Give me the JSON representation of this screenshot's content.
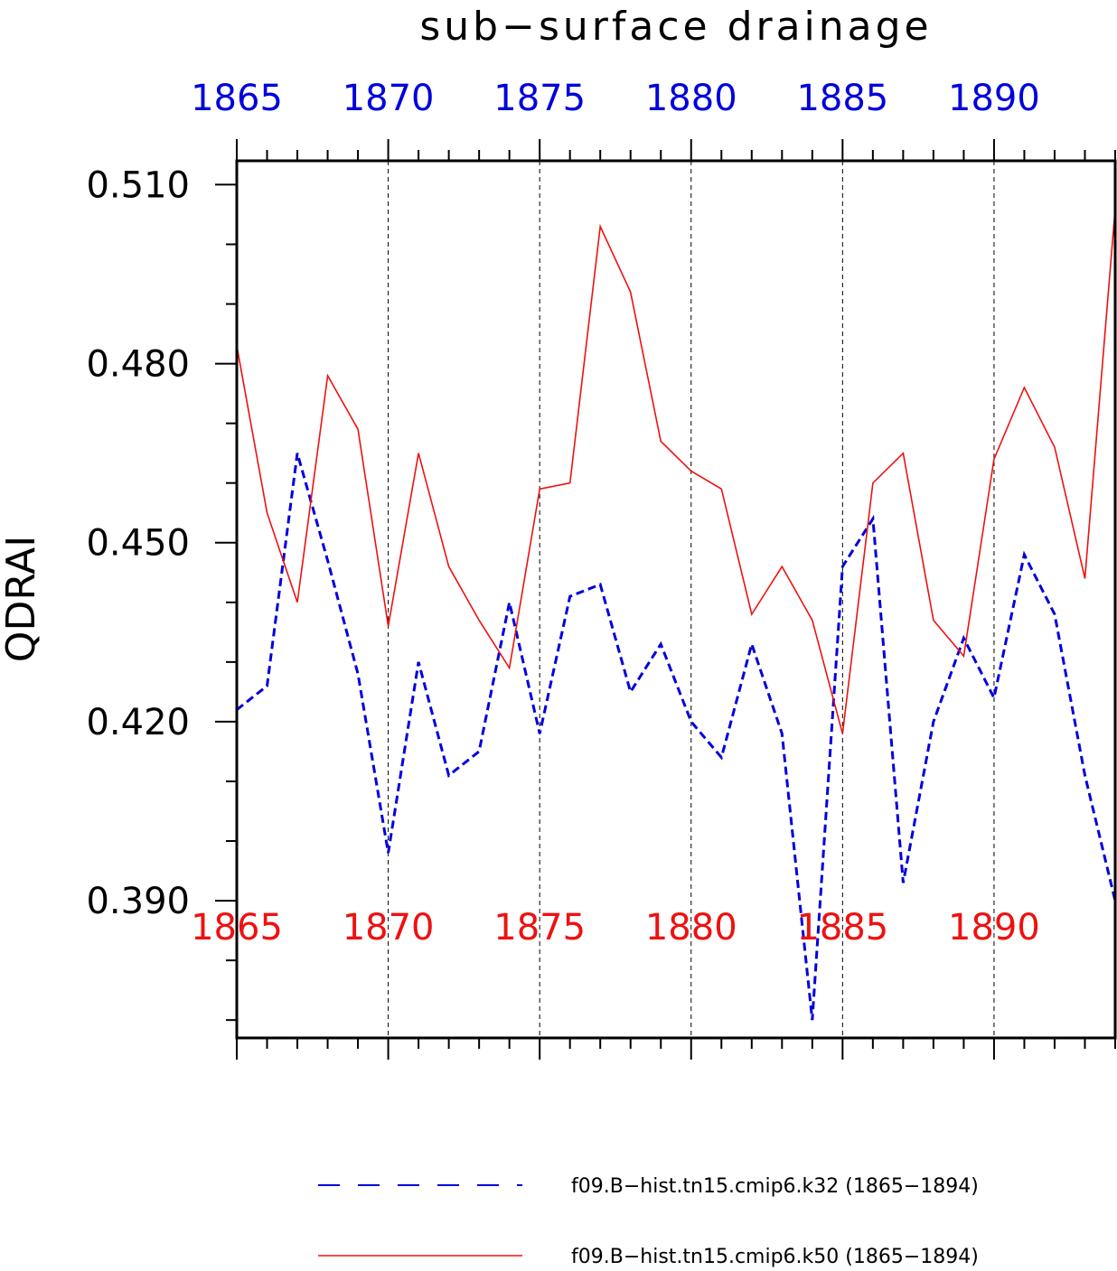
{
  "chart_data": {
    "type": "line",
    "title": "sub−surface drainage",
    "ylabel": "QDRAI",
    "xlabel": "",
    "xlim": [
      1865,
      1894
    ],
    "ylim": [
      0.367,
      0.514
    ],
    "yticks": [
      0.39,
      0.42,
      0.45,
      0.48,
      0.51
    ],
    "ytick_labels": [
      "0.390",
      "0.420",
      "0.450",
      "0.480",
      "0.510"
    ],
    "xticks": [
      1865,
      1870,
      1875,
      1880,
      1885,
      1890
    ],
    "xtick_labels_bottom": [
      "1865",
      "1870",
      "1875",
      "1880",
      "1885",
      "1890"
    ],
    "xtick_labels_top": [
      "1865",
      "1870",
      "1875",
      "1880",
      "1885",
      "1890"
    ],
    "grid": "vertical dashed at major x ticks",
    "legend_position": "bottom",
    "x": [
      1865,
      1866,
      1867,
      1868,
      1869,
      1870,
      1871,
      1872,
      1873,
      1874,
      1875,
      1876,
      1877,
      1878,
      1879,
      1880,
      1881,
      1882,
      1883,
      1884,
      1885,
      1886,
      1887,
      1888,
      1889,
      1890,
      1891,
      1892,
      1893,
      1894
    ],
    "series": [
      {
        "name": "f09.B−hist.tn15.cmip6.k32 (1865−1894)",
        "color": "#0000dd",
        "style": "dashed",
        "values": [
          0.422,
          0.426,
          0.465,
          0.447,
          0.428,
          0.398,
          0.43,
          0.411,
          0.415,
          0.44,
          0.418,
          0.441,
          0.443,
          0.425,
          0.433,
          0.42,
          0.414,
          0.433,
          0.418,
          0.37,
          0.446,
          0.454,
          0.393,
          0.42,
          0.434,
          0.424,
          0.448,
          0.438,
          0.411,
          0.39
        ]
      },
      {
        "name": "f09.B−hist.tn15.cmip6.k50 (1865−1894)",
        "color": "#ee1111",
        "style": "solid",
        "values": [
          0.483,
          0.455,
          0.44,
          0.478,
          0.469,
          0.436,
          0.465,
          0.446,
          0.437,
          0.429,
          0.459,
          0.46,
          0.503,
          0.492,
          0.467,
          0.462,
          0.459,
          0.438,
          0.446,
          0.437,
          0.418,
          0.46,
          0.465,
          0.437,
          0.431,
          0.464,
          0.476,
          0.466,
          0.444,
          0.506
        ]
      }
    ],
    "top_axis_color": "#0000dd",
    "bottom_axis_color": "#ee1111"
  }
}
